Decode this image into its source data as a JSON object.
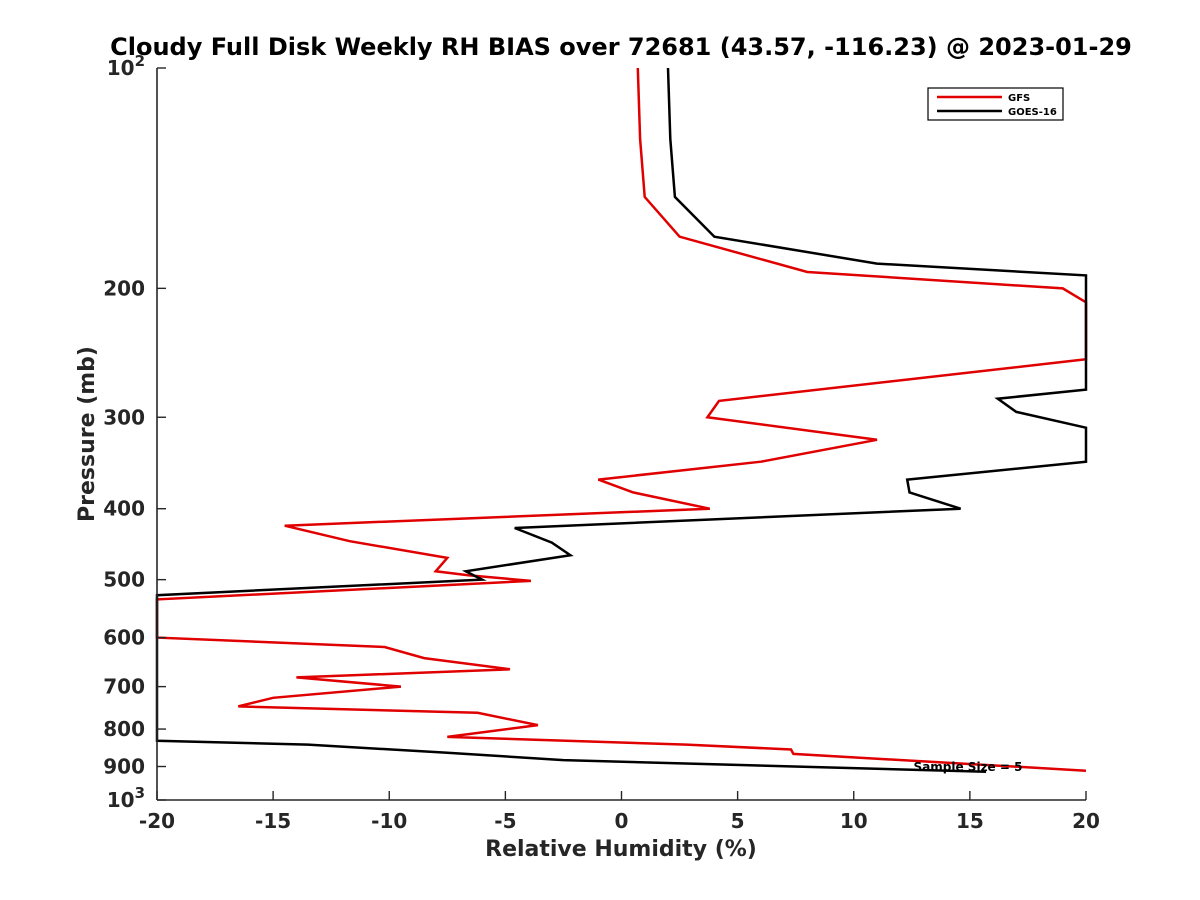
{
  "chart_data": {
    "type": "line",
    "title": "Cloudy Full Disk Weekly RH BIAS over 72681 (43.57, -116.23) @ 2023-01-29",
    "xlabel": "Relative Humidity (%)",
    "ylabel": "Pressure (mb)",
    "xlim": [
      -20,
      20
    ],
    "ylim": [
      100,
      1000
    ],
    "y_scale": "log",
    "y_reversed": true,
    "grid": false,
    "legend_position": "top-right",
    "annotation": "Sample Size = 5",
    "x_ticks": [
      "-20",
      "-15",
      "-10",
      "-5",
      "0",
      "5",
      "10",
      "15",
      "20"
    ],
    "y_ticks": [
      {
        "value": 100,
        "label": "10",
        "sup": "2"
      },
      {
        "value": 200,
        "label": "200",
        "sup": ""
      },
      {
        "value": 300,
        "label": "300",
        "sup": ""
      },
      {
        "value": 400,
        "label": "400",
        "sup": ""
      },
      {
        "value": 500,
        "label": "500",
        "sup": ""
      },
      {
        "value": 600,
        "label": "600",
        "sup": ""
      },
      {
        "value": 700,
        "label": "700",
        "sup": ""
      },
      {
        "value": 800,
        "label": "800",
        "sup": ""
      },
      {
        "value": 900,
        "label": "900",
        "sup": ""
      },
      {
        "value": 1000,
        "label": "10",
        "sup": "3"
      }
    ],
    "series": [
      {
        "name": "GFS",
        "color": "#e00000",
        "points": [
          [
            0.7,
            100
          ],
          [
            0.8,
            125
          ],
          [
            1.0,
            150
          ],
          [
            2.5,
            170
          ],
          [
            8.0,
            190
          ],
          [
            19.0,
            200
          ],
          [
            20.0,
            209
          ],
          [
            20.0,
            250
          ],
          [
            4.2,
            285
          ],
          [
            3.7,
            300
          ],
          [
            11.0,
            322
          ],
          [
            6.0,
            345
          ],
          [
            -1.0,
            365
          ],
          [
            0.5,
            380
          ],
          [
            3.8,
            400
          ],
          [
            -14.5,
            422
          ],
          [
            -11.7,
            443
          ],
          [
            -7.5,
            467
          ],
          [
            -8.0,
            487
          ],
          [
            -6.6,
            493
          ],
          [
            -3.9,
            502
          ],
          [
            -20.0,
            532
          ],
          [
            -20.0,
            600
          ],
          [
            -10.2,
            618
          ],
          [
            -8.5,
            640
          ],
          [
            -4.8,
            663
          ],
          [
            -14.0,
            680
          ],
          [
            -9.5,
            700
          ],
          [
            -15.0,
            725
          ],
          [
            -16.5,
            745
          ],
          [
            -6.2,
            760
          ],
          [
            -3.6,
            790
          ],
          [
            -7.5,
            820
          ],
          [
            2.8,
            840
          ],
          [
            7.3,
            853
          ],
          [
            7.4,
            865
          ],
          [
            20.0,
            912
          ]
        ]
      },
      {
        "name": "GOES-16",
        "color": "#000000",
        "points": [
          [
            2.0,
            100
          ],
          [
            2.1,
            125
          ],
          [
            2.3,
            150
          ],
          [
            4.0,
            170
          ],
          [
            11.0,
            185
          ],
          [
            20.0,
            192
          ],
          [
            20.0,
            275
          ],
          [
            16.2,
            283
          ],
          [
            17.0,
            295
          ],
          [
            20.0,
            310
          ],
          [
            20.0,
            345
          ],
          [
            12.3,
            365
          ],
          [
            12.4,
            380
          ],
          [
            14.6,
            400
          ],
          [
            -4.6,
            425
          ],
          [
            -3.0,
            445
          ],
          [
            -2.2,
            463
          ],
          [
            -6.7,
            487
          ],
          [
            -6.0,
            500
          ],
          [
            -20.0,
            525
          ],
          [
            -20.0,
            830
          ],
          [
            -13.5,
            840
          ],
          [
            -7.5,
            862
          ],
          [
            -2.5,
            882
          ],
          [
            15.7,
            915
          ]
        ]
      }
    ]
  }
}
